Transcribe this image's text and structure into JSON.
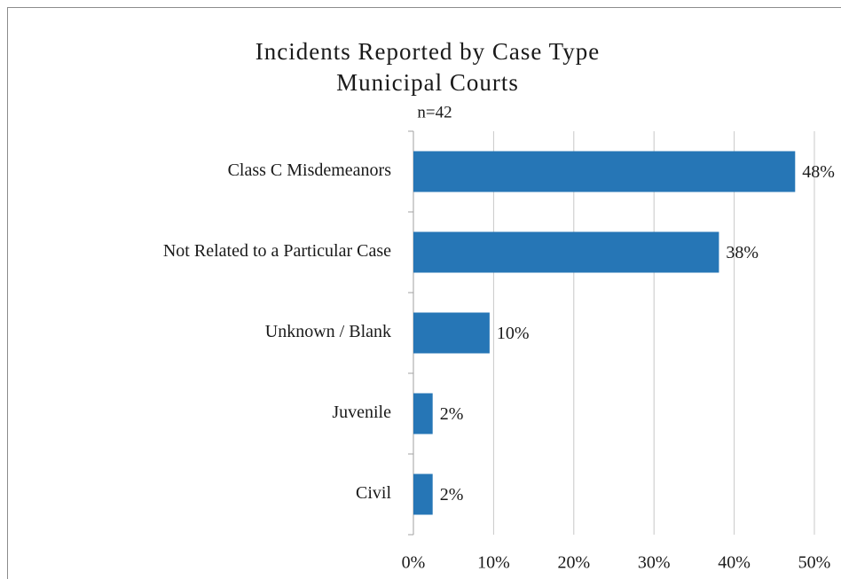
{
  "chart_data": {
    "type": "hbar",
    "title_lines": [
      "Incidents Reported by Case Type",
      "Municipal Courts"
    ],
    "subtitle": "n=42",
    "categories": [
      "Class C Misdemeanors",
      "Not Related to a Particular Case",
      "Unknown /  Blank",
      "Juvenile",
      "Civil"
    ],
    "values": [
      47.6,
      38.1,
      9.5,
      2.4,
      2.4
    ],
    "value_labels": [
      "48%",
      "38%",
      "10%",
      "2%",
      "2%"
    ],
    "color": "#2676b6",
    "xlim": [
      0,
      50
    ],
    "xticks": [
      {
        "value": 0,
        "label": "0%"
      },
      {
        "value": 10,
        "label": "10%"
      },
      {
        "value": 20,
        "label": "20%"
      },
      {
        "value": 30,
        "label": "30%"
      },
      {
        "value": 40,
        "label": "40%"
      },
      {
        "value": 50,
        "label": "50%"
      }
    ],
    "grid": true
  }
}
